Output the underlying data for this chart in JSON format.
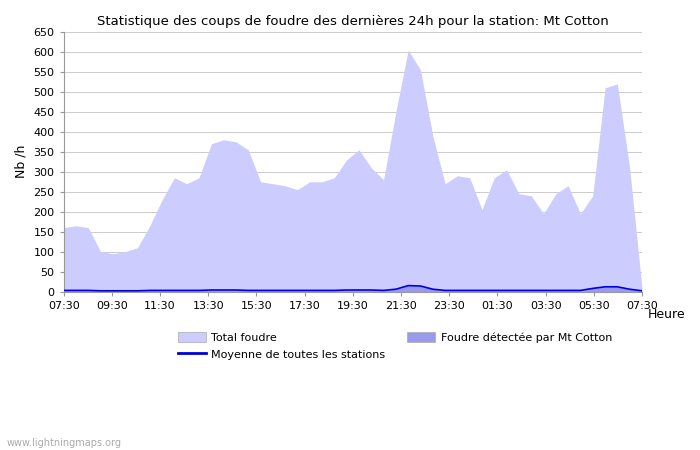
{
  "title": "Statistique des coups de foudre des dernières 24h pour la station: Mt Cotton",
  "xlabel": "Heure",
  "ylabel": "Nb /h",
  "watermark": "www.lightningmaps.org",
  "ylim": [
    0,
    650
  ],
  "yticks": [
    0,
    50,
    100,
    150,
    200,
    250,
    300,
    350,
    400,
    450,
    500,
    550,
    600,
    650
  ],
  "xtick_labels": [
    "07:30",
    "09:30",
    "11:30",
    "13:30",
    "15:30",
    "17:30",
    "19:30",
    "21:30",
    "23:30",
    "01:30",
    "03:30",
    "05:30",
    "07:30"
  ],
  "bg_color": "#ffffff",
  "plot_bg_color": "#ffffff",
  "grid_color": "#cccccc",
  "total_foudre_color": "#ccccff",
  "foudre_mt_cotton_color": "#9999ee",
  "moyenne_color": "#0000dd",
  "legend_labels": [
    "Total foudre",
    "Moyenne de toutes les stations",
    "Foudre détectée par Mt Cotton"
  ],
  "total_foudre": [
    160,
    165,
    160,
    100,
    95,
    100,
    110,
    165,
    230,
    285,
    270,
    285,
    370,
    380,
    375,
    355,
    275,
    270,
    265,
    255,
    275,
    275,
    285,
    330,
    355,
    310,
    280,
    450,
    605,
    555,
    390,
    270,
    290,
    285,
    205,
    285,
    305,
    245,
    240,
    195,
    245,
    265,
    195,
    240,
    510,
    520,
    310,
    10
  ],
  "foudre_mt_cotton": [
    3,
    3,
    3,
    2,
    2,
    2,
    2,
    3,
    3,
    3,
    3,
    3,
    4,
    4,
    4,
    3,
    3,
    3,
    3,
    3,
    3,
    3,
    3,
    4,
    4,
    4,
    3,
    6,
    15,
    14,
    6,
    3,
    3,
    3,
    3,
    3,
    3,
    3,
    3,
    3,
    3,
    3,
    3,
    8,
    12,
    12,
    6,
    2
  ],
  "moyenne": [
    3,
    3,
    3,
    2,
    2,
    2,
    2,
    3,
    3,
    3,
    3,
    3,
    4,
    4,
    4,
    3,
    3,
    3,
    3,
    3,
    3,
    3,
    3,
    4,
    4,
    4,
    3,
    6,
    15,
    14,
    6,
    3,
    3,
    3,
    3,
    3,
    3,
    3,
    3,
    3,
    3,
    3,
    3,
    8,
    12,
    12,
    6,
    2
  ]
}
